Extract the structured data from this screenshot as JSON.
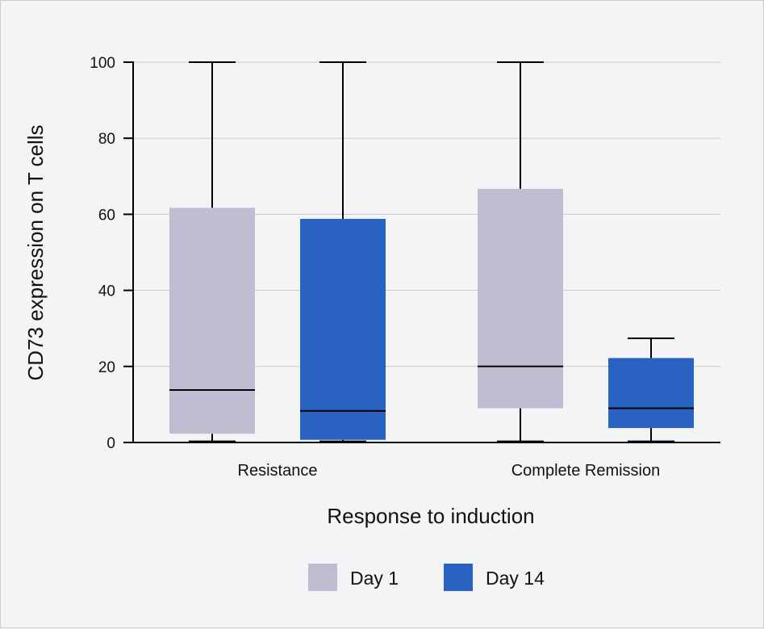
{
  "chart_data": {
    "type": "box",
    "xlabel": "Response to induction",
    "ylabel": "CD73 expression on T cells",
    "ylim": [
      0,
      100
    ],
    "yticks": [
      0,
      20,
      40,
      60,
      80,
      100
    ],
    "grid": true,
    "legend_position": "bottom",
    "categories": [
      "Resistance",
      "Complete Remission"
    ],
    "series": [
      {
        "name": "Day 1",
        "color": "#bebdd1",
        "boxes": [
          {
            "category": "Resistance",
            "min": 0.3,
            "q1": 2.3,
            "median": 13.8,
            "q3": 61.7,
            "max": 100
          },
          {
            "category": "Complete Remission",
            "min": 0.3,
            "q1": 9.0,
            "median": 20.0,
            "q3": 66.7,
            "max": 100
          }
        ]
      },
      {
        "name": "Day 14",
        "color": "#2962c0",
        "boxes": [
          {
            "category": "Resistance",
            "min": 0.3,
            "q1": 0.7,
            "median": 8.3,
            "q3": 58.8,
            "max": 100
          },
          {
            "category": "Complete Remission",
            "min": 0.3,
            "q1": 3.8,
            "median": 9.0,
            "q3": 22.2,
            "max": 27.4
          }
        ]
      }
    ]
  }
}
